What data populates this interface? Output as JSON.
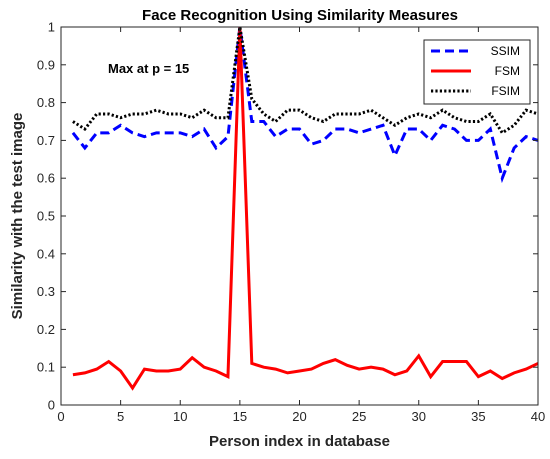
{
  "chart_data": {
    "type": "line",
    "title": "Face Recognition Using Similarity Measures",
    "xlabel": "Person index in database",
    "ylabel": "Similarity with the test image",
    "xlim": [
      0,
      40
    ],
    "ylim": [
      0,
      1
    ],
    "xticks": [
      0,
      5,
      10,
      15,
      20,
      25,
      30,
      35,
      40
    ],
    "yticks": [
      0,
      0.1,
      0.2,
      0.3,
      0.4,
      0.5,
      0.6,
      0.7,
      0.8,
      0.9,
      1
    ],
    "grid": false,
    "legend_position": "top-right",
    "annotation": "Max at p = 15",
    "x": [
      1,
      2,
      3,
      4,
      5,
      6,
      7,
      8,
      9,
      10,
      11,
      12,
      13,
      14,
      15,
      16,
      17,
      18,
      19,
      20,
      21,
      22,
      23,
      24,
      25,
      26,
      27,
      28,
      29,
      30,
      31,
      32,
      33,
      34,
      35,
      36,
      37,
      38,
      39,
      40
    ],
    "series": [
      {
        "name": "SSIM",
        "color": "#0000ff",
        "style": "dashed",
        "values": [
          0.72,
          0.68,
          0.72,
          0.72,
          0.74,
          0.72,
          0.71,
          0.72,
          0.72,
          0.72,
          0.71,
          0.73,
          0.68,
          0.71,
          1.0,
          0.75,
          0.75,
          0.71,
          0.73,
          0.73,
          0.69,
          0.7,
          0.73,
          0.73,
          0.72,
          0.73,
          0.74,
          0.66,
          0.73,
          0.73,
          0.7,
          0.74,
          0.73,
          0.7,
          0.7,
          0.73,
          0.6,
          0.68,
          0.71,
          0.7
        ]
      },
      {
        "name": "FSM",
        "color": "#ff0000",
        "style": "solid",
        "values": [
          0.08,
          0.085,
          0.095,
          0.115,
          0.09,
          0.045,
          0.095,
          0.09,
          0.09,
          0.095,
          0.125,
          0.1,
          0.09,
          0.075,
          1.0,
          0.11,
          0.1,
          0.095,
          0.085,
          0.09,
          0.095,
          0.11,
          0.12,
          0.105,
          0.095,
          0.1,
          0.095,
          0.08,
          0.09,
          0.13,
          0.075,
          0.115,
          0.115,
          0.115,
          0.075,
          0.09,
          0.07,
          0.085,
          0.095,
          0.11
        ]
      },
      {
        "name": "FSIM",
        "color": "#000000",
        "style": "dotted",
        "values": [
          0.75,
          0.73,
          0.77,
          0.77,
          0.76,
          0.77,
          0.77,
          0.78,
          0.77,
          0.77,
          0.76,
          0.78,
          0.76,
          0.76,
          1.0,
          0.81,
          0.77,
          0.75,
          0.78,
          0.78,
          0.76,
          0.75,
          0.77,
          0.77,
          0.77,
          0.78,
          0.76,
          0.74,
          0.76,
          0.77,
          0.76,
          0.78,
          0.76,
          0.75,
          0.75,
          0.77,
          0.72,
          0.74,
          0.78,
          0.77
        ]
      }
    ]
  }
}
